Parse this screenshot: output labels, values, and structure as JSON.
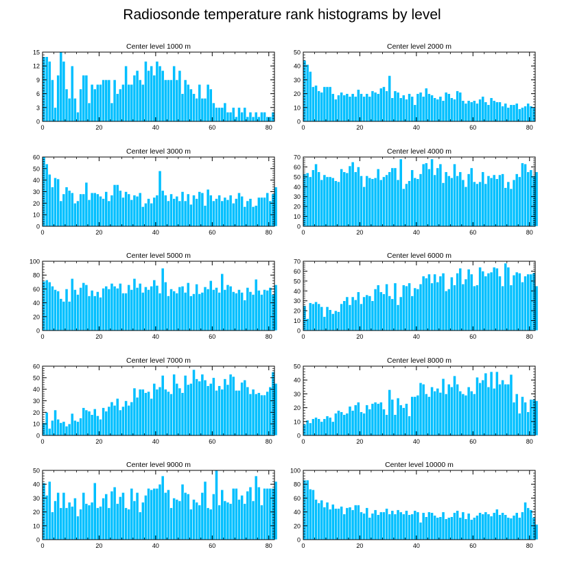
{
  "title": "Radiosonde temperature rank histograms by level",
  "colors": {
    "bar": "#00bfff",
    "bar_edge": "#ffffff",
    "axis": "#000000"
  },
  "chart_data": [
    {
      "type": "bar",
      "title": "Center level 1000 m",
      "xlabel": "",
      "ylabel": "",
      "xlim": [
        0,
        82
      ],
      "ylim": [
        0,
        15
      ],
      "yticks": [
        0,
        3,
        6,
        9,
        12,
        15
      ],
      "xticks": [
        0,
        20,
        40,
        60,
        80
      ],
      "values": [
        14,
        14,
        13,
        9,
        3,
        10,
        15,
        13,
        7,
        5,
        12,
        5,
        2,
        7,
        10,
        10,
        4,
        8,
        7,
        8,
        8,
        9,
        9,
        9,
        4,
        9,
        6,
        7,
        8,
        12,
        8,
        8,
        10,
        11,
        9,
        8,
        13,
        11,
        12,
        10,
        13,
        12,
        11,
        9,
        9,
        9,
        12,
        9,
        11,
        6,
        9,
        8,
        7,
        6,
        5,
        8,
        5,
        5,
        8,
        7,
        4,
        3,
        3,
        3,
        4,
        2,
        2,
        3,
        1,
        3,
        2,
        3,
        1,
        2,
        1,
        2,
        1,
        2,
        2,
        1,
        1,
        2
      ]
    },
    {
      "type": "bar",
      "title": "Center level 2000 m",
      "xlabel": "",
      "ylabel": "",
      "xlim": [
        0,
        82
      ],
      "ylim": [
        0,
        50
      ],
      "yticks": [
        0,
        10,
        20,
        30,
        40,
        50
      ],
      "xticks": [
        0,
        20,
        40,
        60,
        80
      ],
      "values": [
        44,
        41,
        36,
        25,
        26,
        22,
        21,
        25,
        25,
        25,
        20,
        16,
        19,
        21,
        19,
        20,
        18,
        20,
        18,
        23,
        20,
        18,
        20,
        18,
        22,
        21,
        20,
        24,
        25,
        22,
        33,
        17,
        22,
        21,
        17,
        19,
        16,
        20,
        18,
        12,
        20,
        21,
        18,
        24,
        20,
        19,
        17,
        16,
        18,
        15,
        21,
        20,
        17,
        16,
        22,
        21,
        15,
        13,
        15,
        14,
        15,
        13,
        16,
        18,
        14,
        12,
        17,
        15,
        14,
        14,
        11,
        13,
        10,
        12,
        12,
        13,
        9,
        10,
        11,
        13,
        11,
        10
      ]
    },
    {
      "type": "bar",
      "title": "Center level 3000 m",
      "xlabel": "",
      "ylabel": "",
      "xlim": [
        0,
        82
      ],
      "ylim": [
        0,
        60
      ],
      "yticks": [
        0,
        10,
        20,
        30,
        40,
        50,
        60
      ],
      "xticks": [
        0,
        20,
        40,
        60,
        80
      ],
      "values": [
        60,
        54,
        45,
        34,
        42,
        41,
        22,
        28,
        34,
        31,
        29,
        20,
        22,
        28,
        28,
        38,
        23,
        29,
        29,
        28,
        26,
        24,
        30,
        22,
        27,
        36,
        36,
        31,
        25,
        30,
        28,
        23,
        27,
        26,
        29,
        17,
        20,
        24,
        20,
        25,
        27,
        48,
        31,
        27,
        22,
        28,
        24,
        26,
        22,
        30,
        22,
        28,
        19,
        27,
        24,
        30,
        29,
        18,
        32,
        27,
        22,
        24,
        27,
        22,
        25,
        23,
        27,
        20,
        24,
        29,
        26,
        17,
        22,
        24,
        17,
        18,
        25,
        25,
        25,
        29,
        22,
        28,
        34
      ]
    },
    {
      "type": "bar",
      "title": "Center level 4000 m",
      "xlabel": "",
      "ylabel": "",
      "xlim": [
        0,
        82
      ],
      "ylim": [
        0,
        70
      ],
      "yticks": [
        0,
        10,
        20,
        30,
        40,
        50,
        60,
        70
      ],
      "xticks": [
        0,
        20,
        40,
        60,
        80
      ],
      "values": [
        53,
        54,
        50,
        57,
        63,
        55,
        47,
        52,
        50,
        50,
        49,
        46,
        45,
        58,
        55,
        54,
        61,
        65,
        55,
        60,
        51,
        40,
        51,
        49,
        48,
        49,
        58,
        47,
        50,
        52,
        55,
        59,
        59,
        47,
        68,
        38,
        43,
        46,
        57,
        49,
        48,
        53,
        63,
        64,
        58,
        68,
        52,
        59,
        63,
        44,
        55,
        51,
        49,
        63,
        51,
        55,
        47,
        40,
        53,
        59,
        45,
        43,
        45,
        55,
        43,
        51,
        49,
        52,
        48,
        52,
        53,
        39,
        45,
        38,
        47,
        53,
        50,
        64,
        63,
        55,
        57,
        51,
        55
      ]
    },
    {
      "type": "bar",
      "title": "Center level 5000 m",
      "xlabel": "",
      "ylabel": "",
      "xlim": [
        0,
        82
      ],
      "ylim": [
        0,
        100
      ],
      "yticks": [
        0,
        20,
        40,
        60,
        80,
        100
      ],
      "xticks": [
        0,
        20,
        40,
        60,
        80
      ],
      "values": [
        71,
        73,
        70,
        64,
        59,
        57,
        46,
        42,
        60,
        42,
        75,
        59,
        52,
        62,
        69,
        66,
        50,
        58,
        50,
        56,
        48,
        61,
        64,
        60,
        68,
        64,
        61,
        68,
        54,
        54,
        66,
        59,
        75,
        62,
        68,
        55,
        63,
        59,
        64,
        73,
        65,
        54,
        90,
        70,
        50,
        60,
        57,
        54,
        63,
        64,
        55,
        69,
        50,
        53,
        67,
        53,
        55,
        63,
        60,
        72,
        59,
        62,
        55,
        82,
        59,
        66,
        64,
        56,
        54,
        59,
        55,
        44,
        62,
        56,
        52,
        74,
        58,
        52,
        59,
        58,
        62,
        52,
        66
      ]
    },
    {
      "type": "bar",
      "title": "Center level 6000 m",
      "xlabel": "",
      "ylabel": "",
      "xlim": [
        0,
        82
      ],
      "ylim": [
        0,
        70
      ],
      "yticks": [
        0,
        10,
        20,
        30,
        40,
        50,
        60,
        70
      ],
      "xticks": [
        0,
        20,
        40,
        60,
        80
      ],
      "values": [
        25,
        12,
        28,
        27,
        29,
        27,
        24,
        14,
        24,
        21,
        17,
        20,
        19,
        27,
        30,
        34,
        26,
        34,
        31,
        39,
        27,
        34,
        36,
        35,
        30,
        42,
        46,
        39,
        37,
        47,
        35,
        32,
        48,
        26,
        34,
        46,
        45,
        48,
        35,
        43,
        42,
        47,
        55,
        53,
        57,
        48,
        57,
        49,
        55,
        58,
        40,
        42,
        54,
        46,
        58,
        63,
        47,
        52,
        62,
        57,
        45,
        46,
        64,
        60,
        55,
        58,
        59,
        64,
        63,
        55,
        45,
        68,
        64,
        46,
        56,
        59,
        58,
        49,
        55,
        57,
        57,
        58,
        45
      ]
    },
    {
      "type": "bar",
      "title": "Center level 7000 m",
      "xlabel": "",
      "ylabel": "",
      "xlim": [
        0,
        82
      ],
      "ylim": [
        0,
        60
      ],
      "yticks": [
        0,
        10,
        20,
        30,
        40,
        50,
        60
      ],
      "xticks": [
        0,
        20,
        40,
        60,
        80
      ],
      "values": [
        11,
        20,
        6,
        13,
        22,
        14,
        11,
        12,
        8,
        10,
        19,
        13,
        12,
        15,
        24,
        22,
        21,
        18,
        23,
        17,
        14,
        24,
        21,
        25,
        29,
        26,
        32,
        22,
        25,
        30,
        26,
        29,
        41,
        33,
        40,
        40,
        37,
        38,
        32,
        45,
        40,
        42,
        52,
        40,
        38,
        36,
        53,
        45,
        41,
        37,
        52,
        44,
        45,
        57,
        49,
        47,
        53,
        48,
        43,
        45,
        50,
        39,
        43,
        40,
        49,
        44,
        53,
        51,
        39,
        39,
        46,
        48,
        42,
        36,
        40,
        36,
        37,
        35,
        35,
        38,
        42,
        55,
        45
      ]
    },
    {
      "type": "bar",
      "title": "Center level 8000 m",
      "xlabel": "",
      "ylabel": "",
      "xlim": [
        0,
        82
      ],
      "ylim": [
        0,
        50
      ],
      "yticks": [
        0,
        10,
        20,
        30,
        40,
        50
      ],
      "xticks": [
        0,
        20,
        40,
        60,
        80
      ],
      "values": [
        8,
        11,
        9,
        12,
        13,
        12,
        10,
        12,
        14,
        13,
        10,
        16,
        18,
        17,
        15,
        16,
        21,
        18,
        22,
        24,
        17,
        16,
        22,
        19,
        23,
        24,
        23,
        24,
        19,
        15,
        33,
        26,
        15,
        27,
        22,
        20,
        23,
        14,
        28,
        28,
        29,
        38,
        37,
        30,
        28,
        35,
        32,
        34,
        31,
        41,
        30,
        37,
        35,
        43,
        37,
        32,
        30,
        29,
        35,
        32,
        30,
        42,
        38,
        40,
        45,
        35,
        46,
        34,
        46,
        37,
        40,
        37,
        37,
        44,
        24,
        30,
        16,
        28,
        24,
        17,
        26,
        26,
        25
      ]
    },
    {
      "type": "bar",
      "title": "Center level 9000 m",
      "xlabel": "",
      "ylabel": "",
      "xlim": [
        0,
        82
      ],
      "ylim": [
        0,
        50
      ],
      "yticks": [
        0,
        10,
        20,
        30,
        40,
        50
      ],
      "xticks": [
        0,
        20,
        40,
        60,
        80
      ],
      "values": [
        41,
        32,
        42,
        20,
        28,
        34,
        23,
        34,
        23,
        27,
        24,
        30,
        17,
        22,
        34,
        26,
        25,
        27,
        41,
        23,
        24,
        30,
        33,
        23,
        35,
        38,
        26,
        31,
        34,
        23,
        22,
        37,
        28,
        34,
        20,
        27,
        32,
        37,
        36,
        37,
        37,
        40,
        46,
        34,
        36,
        23,
        30,
        29,
        28,
        40,
        34,
        33,
        22,
        29,
        27,
        25,
        34,
        42,
        23,
        22,
        33,
        50,
        25,
        36,
        28,
        27,
        26,
        37,
        37,
        29,
        32,
        26,
        35,
        38,
        28,
        46,
        38,
        25,
        37,
        37,
        37,
        37,
        42
      ]
    },
    {
      "type": "bar",
      "title": "Center level 10000 m",
      "xlabel": "",
      "ylabel": "",
      "xlim": [
        0,
        82
      ],
      "ylim": [
        0,
        100
      ],
      "yticks": [
        0,
        20,
        40,
        60,
        80,
        100
      ],
      "xticks": [
        0,
        20,
        40,
        60,
        80
      ],
      "values": [
        86,
        86,
        73,
        72,
        58,
        53,
        57,
        47,
        54,
        44,
        51,
        45,
        45,
        48,
        37,
        46,
        47,
        43,
        50,
        50,
        40,
        38,
        46,
        32,
        38,
        43,
        36,
        40,
        40,
        45,
        37,
        42,
        37,
        43,
        40,
        37,
        42,
        36,
        37,
        42,
        40,
        25,
        39,
        33,
        40,
        39,
        35,
        32,
        33,
        40,
        30,
        32,
        33,
        39,
        42,
        32,
        40,
        30,
        38,
        29,
        32,
        35,
        39,
        37,
        40,
        37,
        34,
        39,
        44,
        36,
        39,
        36,
        32,
        31,
        35,
        39,
        32,
        40,
        54,
        46,
        43,
        32,
        22
      ]
    }
  ]
}
